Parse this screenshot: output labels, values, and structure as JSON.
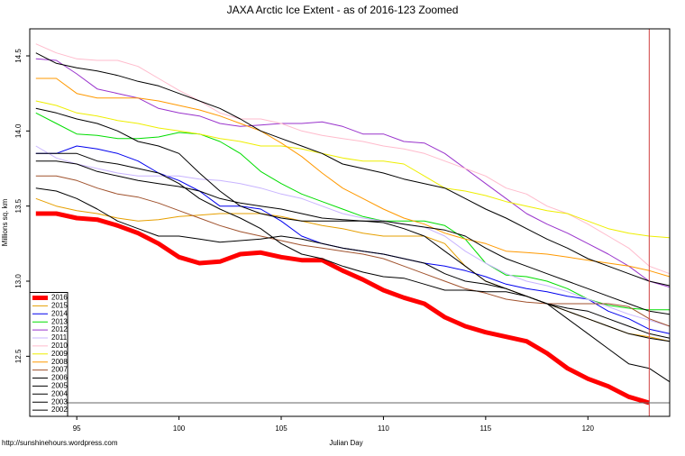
{
  "chart_data": {
    "type": "line",
    "title": "JAXA Arctic Ice Extent - as of 2016-123 Zoomed",
    "x_label": "Julian Day",
    "y_label": "Millions sq. km",
    "source": "http://sunshinehours.wordpress.com",
    "x": [
      93,
      94,
      95,
      96,
      97,
      98,
      99,
      100,
      101,
      102,
      103,
      104,
      105,
      106,
      107,
      108,
      109,
      110,
      111,
      112,
      113,
      114,
      115,
      116,
      117,
      118,
      119,
      120,
      121,
      122,
      123,
      124
    ],
    "xlim": [
      92.7,
      124.0
    ],
    "xticks": [
      95,
      100,
      105,
      110,
      115,
      120
    ],
    "ylim": [
      12.1,
      14.68
    ],
    "yticks": [
      12.5,
      {
        "value": 13.0,
        "label": "13.0"
      },
      13.5,
      {
        "value": 14.0,
        "label": "14.0"
      },
      14.5
    ],
    "vline": 123,
    "hline": 12.19,
    "legend": "bottom-left",
    "series": [
      {
        "name": "2016",
        "color": "#ff0000",
        "width": 5,
        "values": [
          13.45,
          13.45,
          13.42,
          13.41,
          13.37,
          13.32,
          13.25,
          13.16,
          13.12,
          13.13,
          13.18,
          13.19,
          13.16,
          13.14,
          13.14,
          13.07,
          13.01,
          12.94,
          12.89,
          12.85,
          12.76,
          12.7,
          12.66,
          12.63,
          12.6,
          12.52,
          12.42,
          12.35,
          12.3,
          12.23,
          12.19,
          null
        ]
      },
      {
        "name": "2015",
        "color": "#e69f00",
        "width": 1,
        "values": [
          13.55,
          13.5,
          13.47,
          13.45,
          13.42,
          13.4,
          13.41,
          13.43,
          13.44,
          13.45,
          13.45,
          13.45,
          13.43,
          13.4,
          13.37,
          13.35,
          13.32,
          13.3,
          13.3,
          13.3,
          13.25,
          13.1,
          13.0,
          12.95,
          12.9,
          12.85,
          12.8,
          12.75,
          12.7,
          12.65,
          12.63,
          12.6
        ]
      },
      {
        "name": "2014",
        "color": "#0000ee",
        "width": 1,
        "values": [
          13.85,
          13.85,
          13.9,
          13.88,
          13.85,
          13.8,
          13.72,
          13.67,
          13.6,
          13.5,
          13.5,
          13.48,
          13.4,
          13.3,
          13.25,
          13.22,
          13.2,
          13.18,
          13.15,
          13.12,
          13.1,
          13.07,
          13.03,
          12.98,
          12.95,
          12.93,
          12.9,
          12.88,
          12.8,
          12.75,
          12.68,
          12.65
        ]
      },
      {
        "name": "2013",
        "color": "#00dd00",
        "width": 1,
        "values": [
          14.12,
          14.05,
          13.98,
          13.97,
          13.95,
          13.95,
          13.96,
          13.99,
          13.98,
          13.93,
          13.85,
          13.73,
          13.65,
          13.58,
          13.53,
          13.48,
          13.43,
          13.4,
          13.4,
          13.4,
          13.37,
          13.28,
          13.12,
          13.04,
          13.03,
          13.0,
          12.95,
          12.88,
          12.84,
          12.82,
          12.81,
          12.81
        ]
      },
      {
        "name": "2012",
        "color": "#9933cc",
        "width": 1,
        "values": [
          14.48,
          14.47,
          14.38,
          14.28,
          14.25,
          14.22,
          14.15,
          14.12,
          14.1,
          14.05,
          14.03,
          14.04,
          14.05,
          14.05,
          14.06,
          14.03,
          13.98,
          13.98,
          13.93,
          13.92,
          13.85,
          13.75,
          13.65,
          13.55,
          13.45,
          13.38,
          13.32,
          13.25,
          13.18,
          13.1,
          13.0,
          12.96
        ]
      },
      {
        "name": "2011",
        "color": "#c8b4ff",
        "width": 1,
        "values": [
          13.9,
          13.82,
          13.78,
          13.75,
          13.72,
          13.7,
          13.7,
          13.7,
          13.68,
          13.67,
          13.65,
          13.62,
          13.58,
          13.55,
          13.5,
          13.45,
          13.42,
          13.4,
          13.38,
          13.36,
          13.3,
          13.2,
          13.12,
          13.05,
          13.0,
          12.97,
          12.93,
          12.88,
          12.83,
          12.78,
          12.74,
          12.7
        ]
      },
      {
        "name": "2010",
        "color": "#ffbbcc",
        "width": 1,
        "values": [
          14.58,
          14.52,
          14.48,
          14.47,
          14.47,
          14.43,
          14.35,
          14.27,
          14.2,
          14.12,
          14.08,
          14.08,
          14.05,
          14.0,
          13.97,
          13.95,
          13.93,
          13.9,
          13.88,
          13.85,
          13.8,
          13.75,
          13.7,
          13.62,
          13.58,
          13.5,
          13.45,
          13.38,
          13.3,
          13.22,
          13.1,
          13.05
        ]
      },
      {
        "name": "2009",
        "color": "#eeee00",
        "width": 1,
        "values": [
          14.2,
          14.17,
          14.12,
          14.1,
          14.07,
          14.05,
          14.02,
          14.0,
          13.98,
          13.95,
          13.93,
          13.9,
          13.9,
          13.88,
          13.85,
          13.82,
          13.8,
          13.8,
          13.78,
          13.7,
          13.62,
          13.6,
          13.57,
          13.53,
          13.5,
          13.47,
          13.45,
          13.4,
          13.35,
          13.32,
          13.3,
          13.29
        ]
      },
      {
        "name": "2008",
        "color": "#ff9900",
        "width": 1,
        "values": [
          14.35,
          14.35,
          14.25,
          14.22,
          14.22,
          14.22,
          14.2,
          14.17,
          14.14,
          14.1,
          14.05,
          14.0,
          13.92,
          13.83,
          13.72,
          13.62,
          13.55,
          13.48,
          13.42,
          13.38,
          13.32,
          13.28,
          13.25,
          13.2,
          13.19,
          13.18,
          13.16,
          13.14,
          13.12,
          13.1,
          13.07,
          13.03
        ]
      },
      {
        "name": "2007",
        "color": "#a0522d",
        "width": 1,
        "values": [
          13.7,
          13.7,
          13.67,
          13.62,
          13.58,
          13.56,
          13.52,
          13.47,
          13.42,
          13.37,
          13.33,
          13.3,
          13.27,
          13.24,
          13.22,
          13.2,
          13.18,
          13.15,
          13.1,
          13.05,
          13.0,
          12.95,
          12.92,
          12.88,
          12.86,
          12.85,
          12.85,
          12.85,
          12.85,
          12.83,
          12.75,
          12.7
        ]
      },
      {
        "name": "2006",
        "color": "#000000",
        "width": 1,
        "values": [
          14.52,
          14.45,
          14.42,
          14.4,
          14.37,
          14.33,
          14.3,
          14.25,
          14.2,
          14.15,
          14.08,
          14.0,
          13.95,
          13.9,
          13.85,
          13.78,
          13.75,
          13.72,
          13.68,
          13.65,
          13.62,
          13.55,
          13.48,
          13.42,
          13.35,
          13.28,
          13.22,
          13.15,
          13.1,
          13.05,
          13.0,
          12.97
        ]
      },
      {
        "name": "2005",
        "color": "#000000",
        "width": 1,
        "values": [
          14.15,
          14.12,
          14.08,
          14.05,
          14.0,
          13.93,
          13.9,
          13.85,
          13.72,
          13.6,
          13.5,
          13.45,
          13.42,
          13.4,
          13.4,
          13.4,
          13.4,
          13.4,
          13.38,
          13.36,
          13.34,
          13.3,
          13.22,
          13.15,
          13.1,
          13.05,
          13.0,
          12.95,
          12.9,
          12.85,
          12.8,
          12.78
        ]
      },
      {
        "name": "2004",
        "color": "#000000",
        "width": 1,
        "values": [
          13.8,
          13.8,
          13.78,
          13.73,
          13.7,
          13.67,
          13.65,
          13.63,
          13.6,
          13.55,
          13.52,
          13.5,
          13.48,
          13.45,
          13.42,
          13.41,
          13.4,
          13.39,
          13.35,
          13.3,
          13.2,
          13.1,
          13.0,
          12.95,
          12.9,
          12.85,
          12.8,
          12.75,
          12.7,
          12.65,
          12.62,
          12.6
        ]
      },
      {
        "name": "2003",
        "color": "#000000",
        "width": 1,
        "values": [
          13.62,
          13.6,
          13.55,
          13.48,
          13.4,
          13.35,
          13.3,
          13.3,
          13.28,
          13.26,
          13.27,
          13.28,
          13.3,
          13.28,
          13.25,
          13.22,
          13.2,
          13.18,
          13.15,
          13.12,
          13.05,
          13.0,
          12.98,
          12.95,
          12.9,
          12.85,
          12.82,
          12.8,
          12.75,
          12.7,
          12.65,
          12.62
        ]
      },
      {
        "name": "2002",
        "color": "#000000",
        "width": 1,
        "values": [
          13.85,
          13.85,
          13.85,
          13.8,
          13.78,
          13.75,
          13.72,
          13.65,
          13.55,
          13.48,
          13.42,
          13.35,
          13.25,
          13.18,
          13.15,
          13.1,
          13.06,
          13.03,
          13.02,
          12.98,
          12.94,
          12.94,
          12.93,
          12.93,
          12.9,
          12.85,
          12.75,
          12.65,
          12.55,
          12.45,
          12.42,
          12.33
        ]
      }
    ]
  }
}
